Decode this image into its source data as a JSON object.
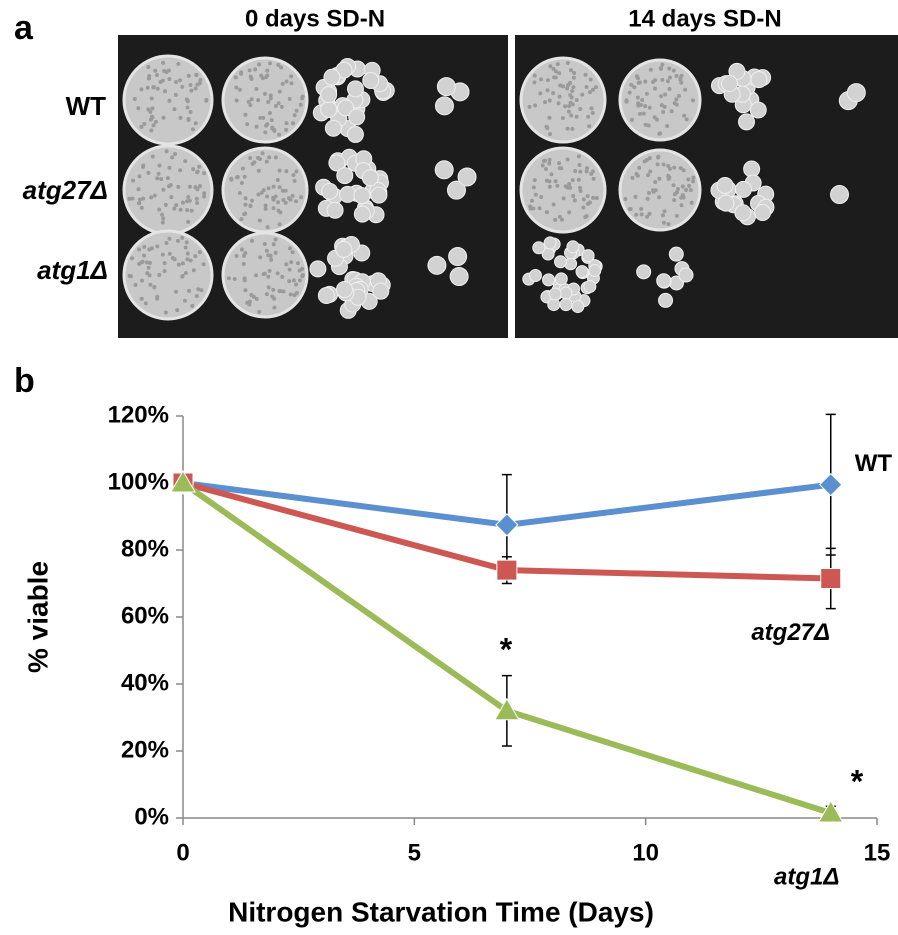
{
  "panel_a": {
    "label": "a",
    "columns": [
      "0 days SD-N",
      "14 days SD-N"
    ],
    "rows": [
      "WT",
      "atg27Δ",
      "atg1Δ"
    ]
  },
  "chart_data": {
    "type": "line",
    "panel_label": "b",
    "x_label": "Nitrogen Starvation Time (Days)",
    "y_label": "% viable",
    "x": [
      0,
      7,
      14
    ],
    "series": [
      {
        "name": "WT",
        "color": "#5a8fd0",
        "marker": "diamond",
        "values": [
          100,
          87.5,
          99.5
        ],
        "errors": [
          null,
          15,
          21
        ]
      },
      {
        "name": "atg27Δ",
        "color": "#cd5753",
        "marker": "square",
        "values": [
          100,
          74,
          71.5
        ],
        "errors": [
          null,
          4,
          9
        ]
      },
      {
        "name": "atg1Δ",
        "color": "#9bbb59",
        "marker": "triangle",
        "values": [
          100,
          32,
          1.5
        ],
        "errors": [
          null,
          10.5,
          2
        ]
      }
    ],
    "annotations": [
      "*",
      "*"
    ],
    "xlim": [
      0,
      15
    ],
    "xticks": [
      0,
      5,
      10,
      15
    ],
    "ylim": [
      0,
      120
    ],
    "yticks": [
      {
        "value": 0,
        "label": "0%"
      },
      {
        "value": 20,
        "label": "20%"
      },
      {
        "value": 40,
        "label": "40%"
      },
      {
        "value": 60,
        "label": "60%"
      },
      {
        "value": 80,
        "label": "80%"
      },
      {
        "value": 100,
        "label": "100%"
      },
      {
        "value": 120,
        "label": "120%"
      }
    ]
  }
}
